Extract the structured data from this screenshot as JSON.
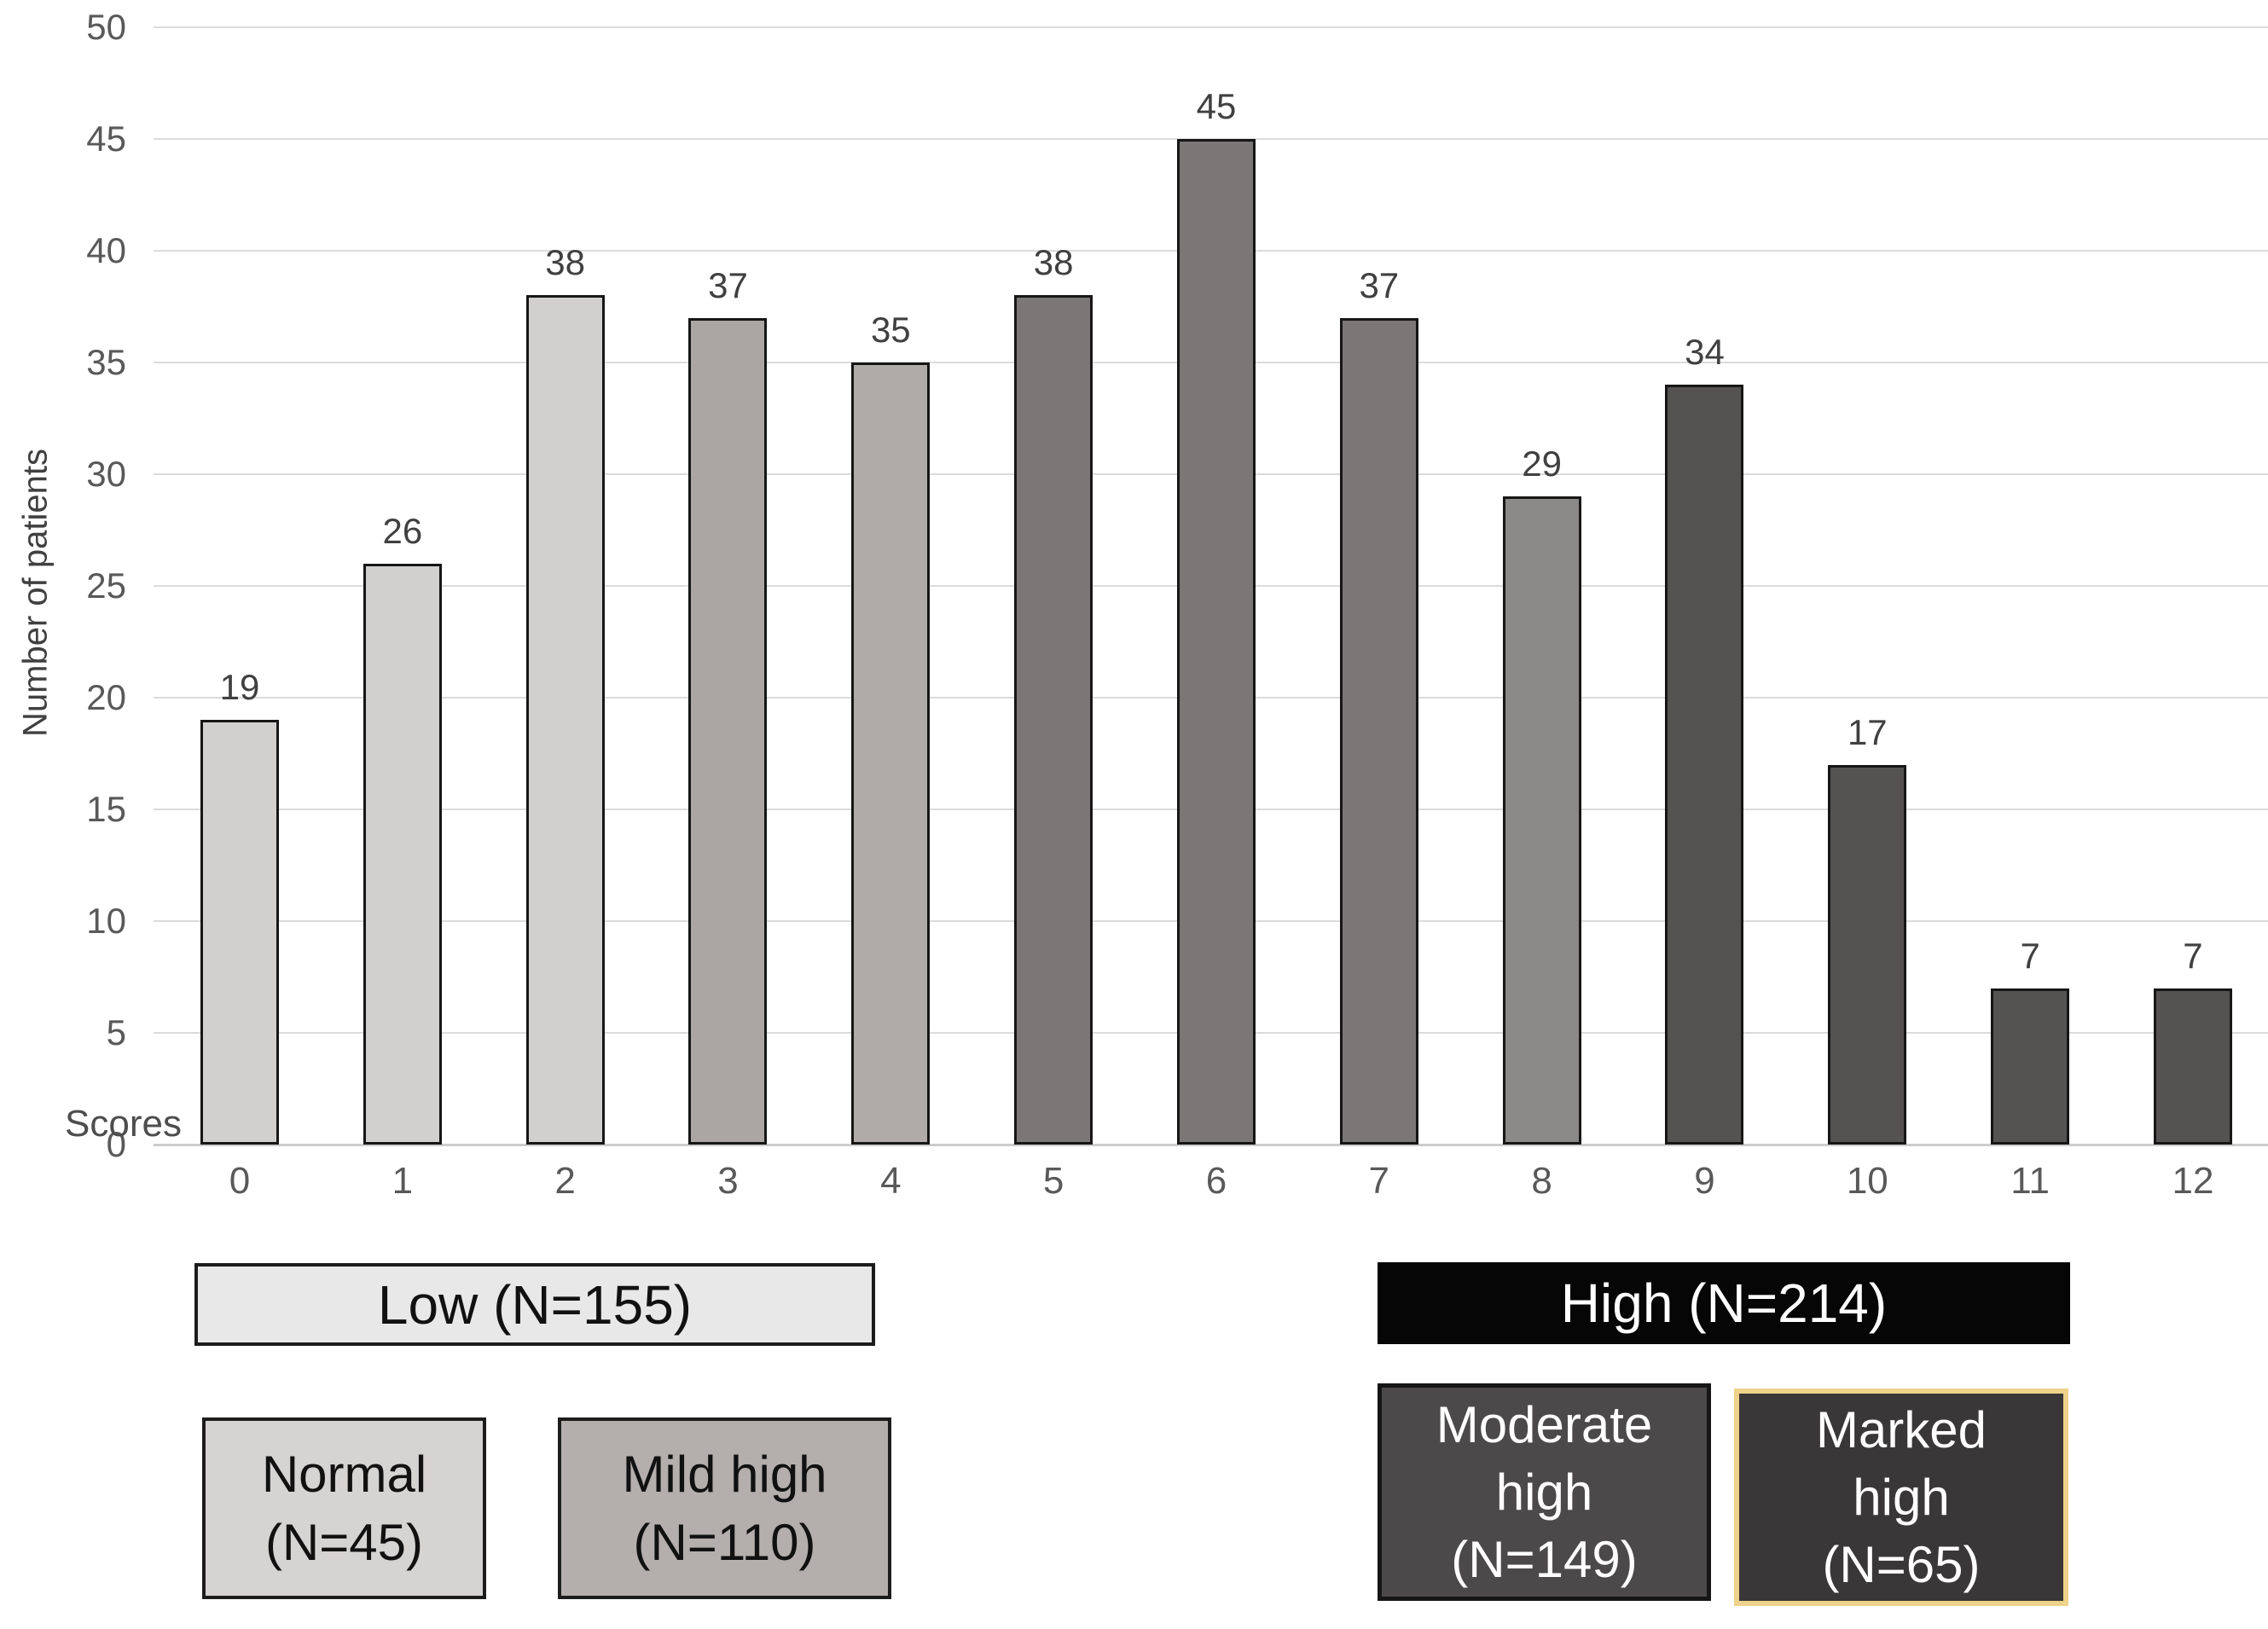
{
  "figure": {
    "background": "#ffffff"
  },
  "chart_data": {
    "type": "bar",
    "title": "",
    "categories": [
      "0",
      "1",
      "2",
      "3",
      "4",
      "5",
      "6",
      "7",
      "8",
      "9",
      "10",
      "11",
      "12"
    ],
    "values": [
      19,
      26,
      38,
      37,
      35,
      38,
      45,
      37,
      29,
      34,
      17,
      7,
      7
    ],
    "bar_colors": [
      "#d2cfcf",
      "#d2cfcf",
      "#d2cfcf",
      "#aba6a3",
      "#b0aba8",
      "#7b7777",
      "#7b7777",
      "#7b7777",
      "#8c8989",
      "#555252",
      "#555252",
      "#555252",
      "#555252"
    ],
    "bar_border_color": "#161616",
    "xlabel": "Scores",
    "ylabel": "Number of patients",
    "ylim": [
      0,
      50
    ],
    "yticks": [
      0,
      5,
      10,
      15,
      20,
      25,
      30,
      35,
      40,
      45,
      50
    ],
    "grid": "horizontal",
    "gridline_color": "#dbdbdb",
    "baseline_color": "#cfcdcc",
    "axis_text_color": "#595959",
    "value_label_color": "#404040",
    "legend_position": "below",
    "value_labels_shown": true
  },
  "legend": {
    "low": {
      "label": "Low (N=155)",
      "n": 155,
      "bg": "#e9e8e8",
      "border": "#1c1c1c",
      "text_color": "#111111"
    },
    "high": {
      "label": "High (N=214)",
      "n": 214,
      "bg": "#060606",
      "border": "#060606",
      "text_color": "#ffffff"
    },
    "normal": {
      "label": "Normal\n(N=45)",
      "n": 45,
      "bg": "#d6d3d3",
      "border": "#1c1c1c",
      "text_color": "#111111"
    },
    "mild": {
      "label": "Mild high\n(N=110)",
      "n": 110,
      "bg": "#b4afac",
      "border": "#1c1c1c",
      "text_color": "#111111"
    },
    "moderate": {
      "label": "Moderate\nhigh\n(N=149)",
      "n": 149,
      "bg": "#4b4949",
      "border": "#161616",
      "text_color": "#ffffff"
    },
    "marked": {
      "label": "Marked\nhigh\n(N=65)",
      "n": 65,
      "bg": "#393737",
      "border": "#eed28a",
      "text_color": "#ffffff"
    }
  }
}
